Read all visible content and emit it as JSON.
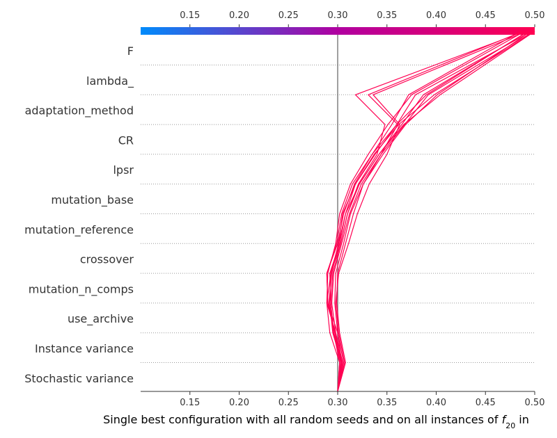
{
  "chart_data": {
    "type": "decision",
    "title": "",
    "xlabel_prefix": "Single best configuration with all random seeds and on all instances of ",
    "xlabel_math_base": "f",
    "xlabel_math_sub": "20",
    "xlabel_suffix": " in",
    "xlim": [
      0.1,
      0.5
    ],
    "base_value": 0.3,
    "xticks": [
      0.15,
      0.2,
      0.25,
      0.3,
      0.35,
      0.4,
      0.45,
      0.5
    ],
    "xtick_labels": [
      "0.15",
      "0.20",
      "0.25",
      "0.30",
      "0.35",
      "0.40",
      "0.45",
      "0.50"
    ],
    "features": [
      "F",
      "lambda_",
      "adaptation_method",
      "CR",
      "lpsr",
      "mutation_base",
      "mutation_reference",
      "crossover",
      "mutation_n_comps",
      "use_archive",
      "Instance variance",
      "Stochastic variance"
    ],
    "colormap": {
      "low": "#008bfb",
      "mid": "#b000a0",
      "high": "#ff0052"
    },
    "line_color": "#ff0052",
    "series": [
      {
        "values": [
          0.3,
          0.304,
          0.295,
          0.292,
          0.293,
          0.301,
          0.305,
          0.318,
          0.338,
          0.36,
          0.379,
          0.497
        ]
      },
      {
        "values": [
          0.3,
          0.302,
          0.292,
          0.289,
          0.29,
          0.298,
          0.302,
          0.313,
          0.331,
          0.351,
          0.375,
          0.49
        ]
      },
      {
        "values": [
          0.3,
          0.303,
          0.296,
          0.293,
          0.295,
          0.303,
          0.31,
          0.322,
          0.342,
          0.365,
          0.387,
          0.494
        ]
      },
      {
        "values": [
          0.3,
          0.306,
          0.3,
          0.297,
          0.298,
          0.306,
          0.313,
          0.326,
          0.344,
          0.361,
          0.331,
          0.488
        ]
      },
      {
        "values": [
          0.3,
          0.305,
          0.298,
          0.294,
          0.296,
          0.304,
          0.312,
          0.324,
          0.344,
          0.368,
          0.392,
          0.499
        ]
      },
      {
        "values": [
          0.3,
          0.304,
          0.297,
          0.29,
          0.289,
          0.299,
          0.304,
          0.315,
          0.335,
          0.36,
          0.39,
          0.493
        ]
      },
      {
        "values": [
          0.3,
          0.308,
          0.302,
          0.299,
          0.3,
          0.308,
          0.316,
          0.326,
          0.346,
          0.369,
          0.401,
          0.496
        ]
      },
      {
        "values": [
          0.3,
          0.303,
          0.298,
          0.289,
          0.293,
          0.303,
          0.31,
          0.321,
          0.34,
          0.348,
          0.318,
          0.49
        ]
      },
      {
        "values": [
          0.3,
          0.302,
          0.296,
          0.293,
          0.292,
          0.302,
          0.308,
          0.318,
          0.337,
          0.362,
          0.398,
          0.5
        ]
      },
      {
        "values": [
          0.3,
          0.307,
          0.301,
          0.298,
          0.301,
          0.311,
          0.32,
          0.332,
          0.35,
          0.363,
          0.336,
          0.492
        ]
      },
      {
        "values": [
          0.3,
          0.304,
          0.3,
          0.29,
          0.289,
          0.3,
          0.306,
          0.317,
          0.335,
          0.355,
          0.372,
          0.486
        ]
      },
      {
        "values": [
          0.3,
          0.305,
          0.296,
          0.291,
          0.294,
          0.301,
          0.308,
          0.322,
          0.342,
          0.367,
          0.404,
          0.5
        ]
      }
    ]
  }
}
